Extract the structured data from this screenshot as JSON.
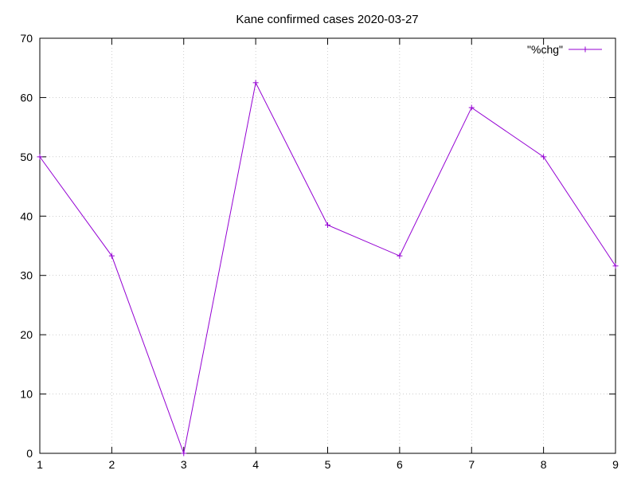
{
  "chart_data": {
    "type": "line",
    "title": "Kane confirmed cases 2020-03-27",
    "xlabel": "",
    "ylabel": "",
    "x": [
      1,
      2,
      3,
      4,
      5,
      6,
      7,
      8,
      9
    ],
    "xticks": [
      "1",
      "2",
      "3",
      "4",
      "5",
      "6",
      "7",
      "8",
      "9"
    ],
    "yticks": [
      "0",
      "10",
      "20",
      "30",
      "40",
      "50",
      "60",
      "70"
    ],
    "xlim": [
      1,
      9
    ],
    "ylim": [
      0,
      70
    ],
    "grid": true,
    "legend_position": "top-right",
    "series": [
      {
        "name": "\"%chg\"",
        "color": "#9400d3",
        "marker": "plus",
        "values": [
          50,
          33.3,
          0,
          62.5,
          38.5,
          33.3,
          58.3,
          50,
          31.6
        ]
      }
    ]
  }
}
